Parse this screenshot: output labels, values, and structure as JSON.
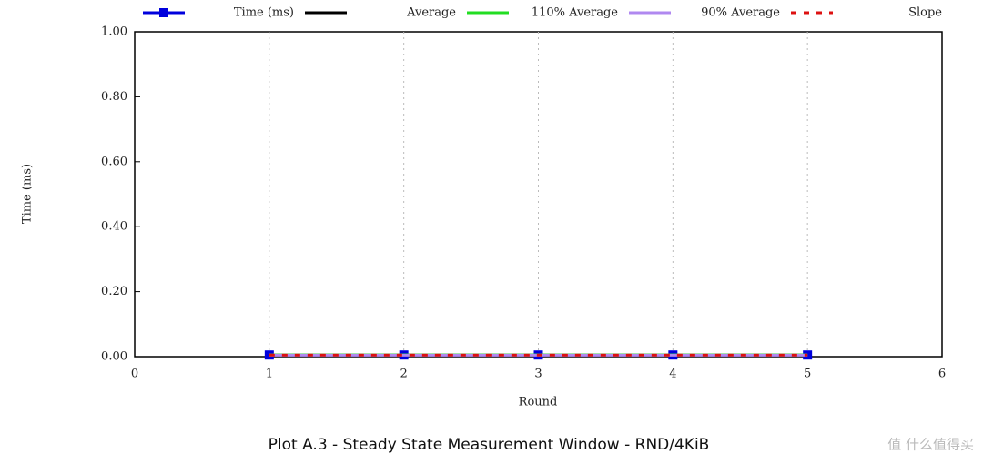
{
  "chart_data": {
    "type": "line",
    "title": "Plot A.3 - Steady State Measurement Window - RND/4KiB",
    "xlabel": "Round",
    "ylabel": "Time (ms)",
    "watermark": "值 什么值得买",
    "x": [
      1,
      2,
      3,
      4,
      5
    ],
    "series": [
      {
        "name": "Time (ms)",
        "color": "#0000dd",
        "marker": "square",
        "dash": false,
        "values": [
          0.005,
          0.005,
          0.005,
          0.005,
          0.005
        ]
      },
      {
        "name": "Average",
        "color": "#000000",
        "marker": "none",
        "dash": false,
        "values": [
          0.005,
          0.005,
          0.005,
          0.005,
          0.005
        ]
      },
      {
        "name": "110% Average",
        "color": "#22dd22",
        "marker": "none",
        "dash": false,
        "values": [
          0.0055,
          0.0055,
          0.0055,
          0.0055,
          0.0055
        ]
      },
      {
        "name": "90% Average",
        "color": "#b088f0",
        "marker": "none",
        "dash": false,
        "values": [
          0.0045,
          0.0045,
          0.0045,
          0.0045,
          0.0045
        ]
      },
      {
        "name": "Slope",
        "color": "#dd1111",
        "marker": "none",
        "dash": true,
        "values": [
          0.005,
          0.005,
          0.005,
          0.005,
          0.005
        ]
      }
    ],
    "xlim": [
      0,
      6
    ],
    "xticks": [
      0,
      1,
      2,
      3,
      4,
      5,
      6
    ],
    "ylim": [
      0,
      1
    ],
    "yticks": [
      {
        "value": 0,
        "label": "0.00"
      },
      {
        "value": 0.2,
        "label": "0.20"
      },
      {
        "value": 0.4,
        "label": "0.40"
      },
      {
        "value": 0.6,
        "label": "0.60"
      },
      {
        "value": 0.8,
        "label": "0.80"
      },
      {
        "value": 1,
        "label": "1.00"
      }
    ],
    "grid": true,
    "legend": "top"
  }
}
